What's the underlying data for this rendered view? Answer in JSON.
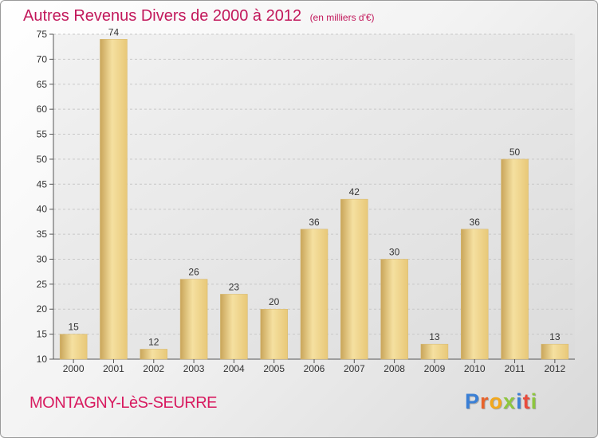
{
  "title": "Autres Revenus Divers de 2000 à 2012",
  "subtitle": "(en milliers d'€)",
  "commune": "MONTAGNY-LèS-SEURRE",
  "logo": {
    "letters": [
      "P",
      "r",
      "o",
      "x",
      "i",
      "t",
      "i"
    ],
    "colors": [
      "#3a7fd5",
      "#e8632b",
      "#f2a81d",
      "#8dc63f",
      "#3a7fd5",
      "#e84c3d",
      "#8dc63f"
    ]
  },
  "colors": {
    "title": "#c2185b",
    "bar_light": "#f5e0a0",
    "bar_dark": "#c9a55a",
    "grid": "#c8c8c8"
  },
  "chart_data": {
    "type": "bar",
    "categories": [
      "2000",
      "2001",
      "2002",
      "2003",
      "2004",
      "2005",
      "2006",
      "2007",
      "2008",
      "2009",
      "2010",
      "2011",
      "2012"
    ],
    "values": [
      15,
      74,
      12,
      26,
      23,
      20,
      36,
      42,
      30,
      13,
      36,
      50,
      13
    ],
    "ylim": [
      10,
      75
    ],
    "yticks": [
      10,
      15,
      20,
      25,
      30,
      35,
      40,
      45,
      50,
      55,
      60,
      65,
      70,
      75
    ],
    "grid": "horizontal dashed",
    "data_labels": true
  }
}
